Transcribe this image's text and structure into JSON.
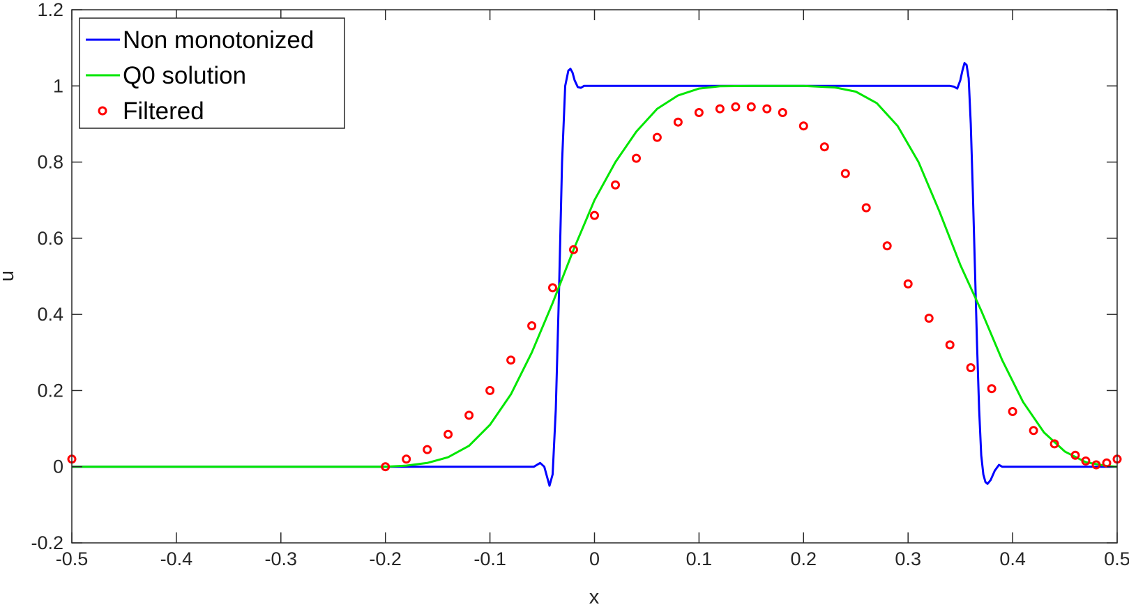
{
  "chart_data": {
    "type": "line",
    "xlabel": "x",
    "ylabel": "u",
    "xlim": [
      -0.5,
      0.5
    ],
    "ylim": [
      -0.2,
      1.2
    ],
    "xticks": [
      -0.5,
      -0.4,
      -0.3,
      -0.2,
      -0.1,
      0,
      0.1,
      0.2,
      0.3,
      0.4,
      0.5
    ],
    "xtick_labels": [
      "-0.5",
      "-0.4",
      "-0.3",
      "-0.2",
      "-0.1",
      "0",
      "0.1",
      "0.2",
      "0.3",
      "0.4",
      "0.5"
    ],
    "yticks": [
      -0.2,
      0,
      0.2,
      0.4,
      0.6,
      0.8,
      1,
      1.2
    ],
    "ytick_labels": [
      "-0.2",
      "0",
      "0.2",
      "0.4",
      "0.6",
      "0.8",
      "1",
      "1.2"
    ],
    "grid": false,
    "legend_position": "top-left",
    "series": [
      {
        "name": "Non monotonized",
        "style": "line",
        "color": "#0000ff",
        "x": [
          -0.5,
          -0.07,
          -0.058,
          -0.052,
          -0.048,
          -0.045,
          -0.043,
          -0.04,
          -0.037,
          -0.034,
          -0.031,
          -0.028,
          -0.025,
          -0.023,
          -0.021,
          -0.019,
          -0.016,
          -0.013,
          -0.01,
          -0.005,
          0,
          0.335,
          0.34,
          0.344,
          0.347,
          0.35,
          0.352,
          0.354,
          0.356,
          0.358,
          0.36,
          0.362,
          0.364,
          0.366,
          0.368,
          0.37,
          0.372,
          0.374,
          0.376,
          0.379,
          0.383,
          0.387,
          0.39,
          0.395,
          0.5
        ],
        "y": [
          0,
          0,
          0,
          0.01,
          0,
          -0.03,
          -0.05,
          -0.02,
          0.15,
          0.45,
          0.8,
          1.0,
          1.04,
          1.045,
          1.035,
          1.015,
          0.997,
          0.995,
          1.0,
          1.0,
          1.0,
          1.0,
          1.0,
          0.998,
          0.993,
          1.015,
          1.04,
          1.06,
          1.055,
          1.02,
          0.9,
          0.72,
          0.52,
          0.32,
          0.15,
          0.03,
          -0.02,
          -0.04,
          -0.045,
          -0.035,
          -0.01,
          0.005,
          0,
          0,
          0
        ]
      },
      {
        "name": "Q0 solution",
        "style": "line",
        "color": "#00e600",
        "x": [
          -0.5,
          -0.2,
          -0.18,
          -0.16,
          -0.14,
          -0.12,
          -0.1,
          -0.08,
          -0.06,
          -0.04,
          -0.02,
          0,
          0.02,
          0.04,
          0.06,
          0.08,
          0.1,
          0.12,
          0.15,
          0.2,
          0.23,
          0.25,
          0.27,
          0.29,
          0.31,
          0.33,
          0.35,
          0.37,
          0.39,
          0.41,
          0.43,
          0.45,
          0.47,
          0.49,
          0.5
        ],
        "y": [
          0,
          0,
          0.003,
          0.01,
          0.025,
          0.055,
          0.11,
          0.19,
          0.3,
          0.43,
          0.57,
          0.7,
          0.8,
          0.88,
          0.94,
          0.975,
          0.993,
          0.999,
          1.0,
          1.0,
          0.996,
          0.985,
          0.955,
          0.895,
          0.8,
          0.67,
          0.53,
          0.41,
          0.28,
          0.17,
          0.09,
          0.04,
          0.012,
          0.002,
          0
        ]
      },
      {
        "name": "Filtered",
        "style": "markers",
        "marker": "circle",
        "color": "#ff0000",
        "x": [
          -0.5,
          -0.2,
          -0.18,
          -0.16,
          -0.14,
          -0.12,
          -0.1,
          -0.08,
          -0.06,
          -0.04,
          -0.02,
          0,
          0.02,
          0.04,
          0.06,
          0.08,
          0.1,
          0.12,
          0.135,
          0.15,
          0.165,
          0.18,
          0.2,
          0.22,
          0.24,
          0.26,
          0.28,
          0.3,
          0.32,
          0.34,
          0.36,
          0.38,
          0.4,
          0.42,
          0.44,
          0.46,
          0.47,
          0.48,
          0.49,
          0.5
        ],
        "y": [
          0.02,
          0.0,
          0.02,
          0.045,
          0.085,
          0.135,
          0.2,
          0.28,
          0.37,
          0.47,
          0.57,
          0.66,
          0.74,
          0.81,
          0.865,
          0.905,
          0.93,
          0.94,
          0.945,
          0.945,
          0.94,
          0.93,
          0.895,
          0.84,
          0.77,
          0.68,
          0.58,
          0.48,
          0.39,
          0.32,
          0.26,
          0.205,
          0.145,
          0.095,
          0.06,
          0.03,
          0.015,
          0.005,
          0.01,
          0.02
        ]
      }
    ]
  }
}
